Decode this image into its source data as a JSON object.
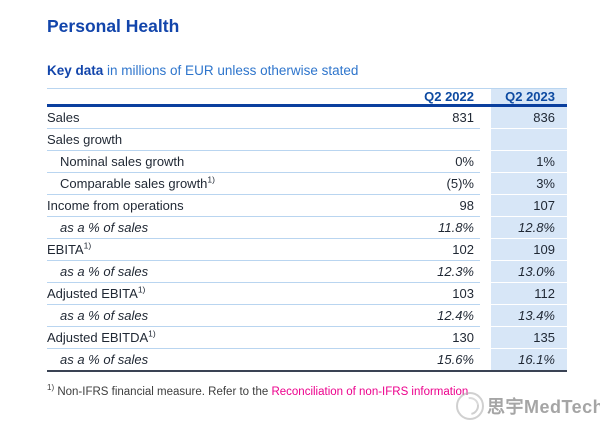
{
  "page": {
    "title": "Personal Health",
    "subtitle_bold": "Key data",
    "subtitle_rest": " in millions of EUR unless otherwise stated"
  },
  "table": {
    "columns": [
      "Q2 2022",
      "Q2 2023"
    ],
    "rows": [
      {
        "label": "Sales",
        "sup": "",
        "indent": 0,
        "italic": false,
        "v2022": "831",
        "v2023": "836"
      },
      {
        "label": "Sales growth",
        "sup": "",
        "indent": 0,
        "italic": false,
        "v2022": "",
        "v2023": ""
      },
      {
        "label": "Nominal sales growth",
        "sup": "",
        "indent": 1,
        "italic": false,
        "v2022": "0%",
        "v2023": "1%"
      },
      {
        "label": "Comparable sales growth",
        "sup": "1)",
        "indent": 1,
        "italic": false,
        "v2022": "(5)%",
        "v2023": "3%"
      },
      {
        "label": "Income from operations",
        "sup": "",
        "indent": 0,
        "italic": false,
        "v2022": "98",
        "v2023": "107"
      },
      {
        "label": "as a % of sales",
        "sup": "",
        "indent": 1,
        "italic": true,
        "v2022": "11.8%",
        "v2023": "12.8%"
      },
      {
        "label": "EBITA",
        "sup": "1)",
        "indent": 0,
        "italic": false,
        "v2022": "102",
        "v2023": "109"
      },
      {
        "label": "as a % of sales",
        "sup": "",
        "indent": 1,
        "italic": true,
        "v2022": "12.3%",
        "v2023": "13.0%"
      },
      {
        "label": "Adjusted EBITA",
        "sup": "1)",
        "indent": 0,
        "italic": false,
        "v2022": "103",
        "v2023": "112"
      },
      {
        "label": "as a % of sales",
        "sup": "",
        "indent": 1,
        "italic": true,
        "v2022": "12.4%",
        "v2023": "13.4%"
      },
      {
        "label": "Adjusted EBITDA",
        "sup": "1)",
        "indent": 0,
        "italic": false,
        "v2022": "130",
        "v2023": "135"
      },
      {
        "label": "as a % of sales",
        "sup": "",
        "indent": 1,
        "italic": true,
        "v2022": "15.6%",
        "v2023": "16.1%"
      }
    ]
  },
  "footnote": {
    "sup": "1)",
    "text": "Non-IFRS financial measure. Refer to the ",
    "link": "Reconciliation of non-IFRS information"
  },
  "watermark": {
    "logo": "stamp-circle-icon",
    "text": "思宇MedTech"
  },
  "colors": {
    "title_blue": "#1245ab",
    "subtitle_blue": "#2e75cc",
    "header_blue": "#0d4aa1",
    "rule_blue": "#0a3f9e",
    "row_line": "#b9d5f0",
    "col_bg": "#d7e6f7",
    "bottom_rule": "#3a4354",
    "text_dark": "#1f2733",
    "footnote_text": "#3d3d3d",
    "link_magenta": "#ec008c",
    "watermark_gray": "#969696"
  }
}
